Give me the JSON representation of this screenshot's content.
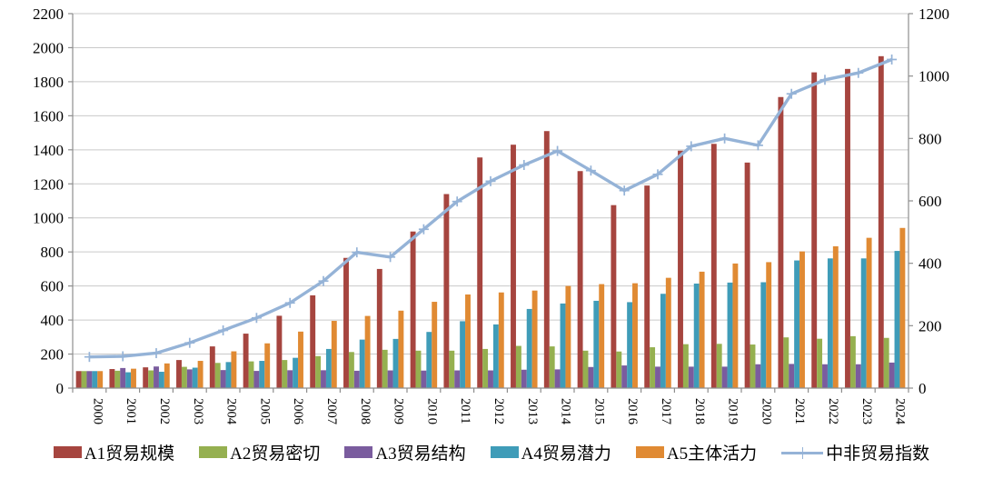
{
  "chart_data": {
    "type": "bar+line combo",
    "title": "",
    "xlabel": "",
    "ylabel_left": "",
    "ylabel_right": "",
    "grid": true,
    "legend_position": "bottom",
    "categories": [
      "2000",
      "2001",
      "2002",
      "2003",
      "2004",
      "2005",
      "2006",
      "2007",
      "2008",
      "2009",
      "2010",
      "2011",
      "2012",
      "2013",
      "2014",
      "2015",
      "2016",
      "2017",
      "2018",
      "2019",
      "2020",
      "2021",
      "2022",
      "2023",
      "2024"
    ],
    "left_axis": {
      "min": 0,
      "max": 2200,
      "step": 200
    },
    "right_axis": {
      "min": 0,
      "max": 1200,
      "step": 200
    },
    "series": [
      {
        "name": "A1贸易规模",
        "type": "bar",
        "axis": "left",
        "color": "#A6453F",
        "values": [
          100,
          112,
          122,
          165,
          245,
          320,
          425,
          545,
          765,
          700,
          920,
          1140,
          1355,
          1430,
          1510,
          1275,
          1075,
          1190,
          1395,
          1435,
          1325,
          1710,
          1855,
          1875,
          1950
        ]
      },
      {
        "name": "A2贸易密切",
        "type": "bar",
        "axis": "left",
        "color": "#95B050",
        "values": [
          100,
          102,
          104,
          125,
          148,
          157,
          165,
          188,
          212,
          225,
          220,
          220,
          230,
          248,
          245,
          220,
          215,
          240,
          258,
          260,
          256,
          298,
          290,
          305,
          295
        ]
      },
      {
        "name": "A3贸易结构",
        "type": "bar",
        "axis": "left",
        "color": "#7A5C9E",
        "values": [
          100,
          118,
          127,
          110,
          106,
          101,
          105,
          105,
          102,
          104,
          103,
          104,
          104,
          108,
          110,
          124,
          133,
          126,
          126,
          126,
          140,
          142,
          140,
          140,
          150
        ]
      },
      {
        "name": "A4贸易潜力",
        "type": "bar",
        "axis": "left",
        "color": "#3F9CB8",
        "values": [
          100,
          93,
          96,
          120,
          153,
          160,
          178,
          230,
          285,
          289,
          330,
          393,
          374,
          465,
          497,
          513,
          505,
          554,
          614,
          620,
          622,
          750,
          762,
          762,
          806
        ]
      },
      {
        "name": "A5主体活力",
        "type": "bar",
        "axis": "left",
        "color": "#E08A33",
        "values": [
          100,
          114,
          145,
          160,
          216,
          263,
          332,
          395,
          424,
          455,
          507,
          550,
          562,
          573,
          600,
          611,
          616,
          648,
          684,
          732,
          740,
          803,
          833,
          883,
          941
        ]
      },
      {
        "name": "中非贸易指数",
        "type": "line",
        "axis": "right",
        "color": "#95B3D7",
        "marker": "plus",
        "values": [
          100,
          102,
          112,
          145,
          185,
          225,
          273,
          343,
          435,
          420,
          509,
          598,
          663,
          715,
          760,
          697,
          633,
          685,
          775,
          800,
          778,
          943,
          988,
          1010,
          1053
        ]
      }
    ],
    "colors": {
      "gridline": "#C9C9C9",
      "axis": "#8E8E8E",
      "text": "#000000"
    }
  }
}
